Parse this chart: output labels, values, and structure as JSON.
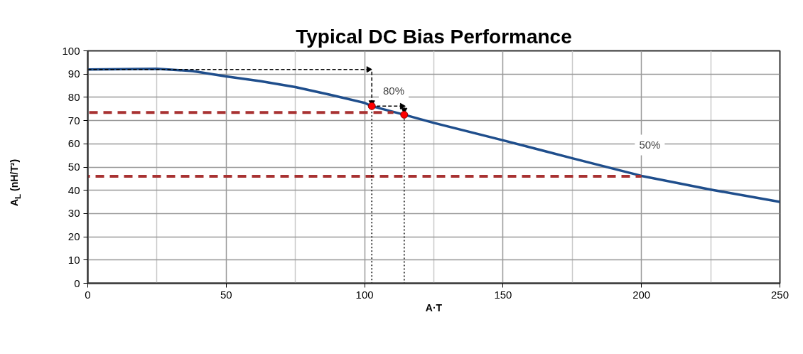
{
  "chart_data": {
    "type": "line",
    "title": "Typical DC Bias Performance",
    "xlabel": "A·T",
    "ylabel": "A$_{L}$ (nH/T²)",
    "xlim": [
      0,
      250
    ],
    "xticks": [
      0,
      50,
      100,
      150,
      200,
      250
    ],
    "ylim": [
      0,
      100
    ],
    "yticks": [
      0,
      10,
      20,
      30,
      40,
      50,
      60,
      70,
      80,
      90,
      100
    ],
    "grid": true,
    "series": [
      {
        "color": "#1f4e8c",
        "line_style": "solid",
        "x": [
          0,
          25,
          37.9,
          50,
          62.5,
          75,
          87.5,
          100,
          102.6,
          114.3,
          125,
          150,
          175,
          200,
          225,
          250
        ],
        "values": [
          92,
          92.3,
          91.3,
          89,
          86.9,
          84.4,
          81.1,
          77.6,
          76.2,
          72.5,
          69,
          61.5,
          53.8,
          46.2,
          40.3,
          35
        ]
      },
      {
        "color": "#a83232",
        "line_style": "dashed",
        "x": [
          0,
          110.4
        ],
        "values": [
          73.5,
          73.5
        ]
      },
      {
        "color": "#a83232",
        "line_style": "dashed",
        "x": [
          0,
          200
        ],
        "values": [
          46,
          46
        ]
      },
      {
        "color": "#000000",
        "line_style": "dotted",
        "x": [
          102.6,
          102.6
        ],
        "values": [
          76.2,
          0
        ]
      },
      {
        "color": "#000000",
        "line_style": "dotted",
        "x": [
          114.3,
          114.3
        ],
        "values": [
          72.5,
          0
        ]
      },
      {
        "color": "#000000",
        "line_style": "dashed",
        "marker": "triangle",
        "x": [
          0,
          101.4
        ],
        "values": [
          92,
          92
        ]
      },
      {
        "color": "#000000",
        "line_style": "dashed",
        "marker": "triangle",
        "x": [
          102.6,
          102.6
        ],
        "values": [
          92,
          77.8
        ]
      },
      {
        "color": "#000000",
        "line_style": "dashed",
        "marker": "triangle",
        "x": [
          102.6,
          113.5
        ],
        "values": [
          76.2,
          76.2
        ]
      },
      {
        "color": "#000000",
        "line_style": "dashed",
        "marker": "triangle",
        "x": [
          114.3,
          114.3
        ],
        "values": [
          76.2,
          74.6
        ]
      },
      {
        "type": "scatter",
        "color": "#ff0000",
        "marker": "circle",
        "x": [
          102.6,
          114.3
        ],
        "values": [
          76.2,
          72.5
        ]
      }
    ],
    "annotations": [
      {
        "text": "80%",
        "x": 110.5,
        "y": 83
      },
      {
        "text": "50%",
        "x": 203,
        "y": 59.5
      }
    ]
  }
}
